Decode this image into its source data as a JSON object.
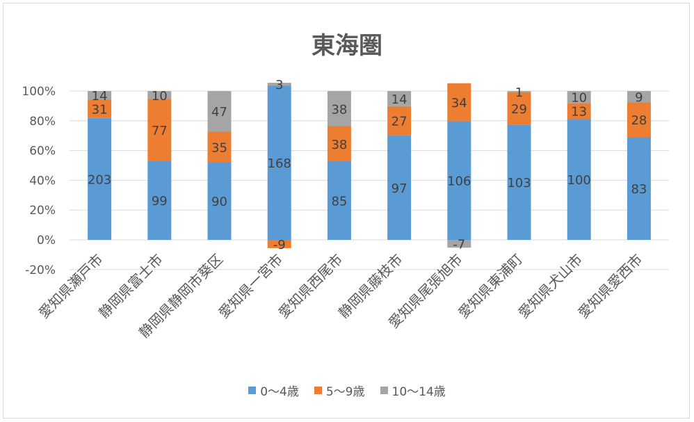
{
  "chart_data": {
    "type": "bar",
    "stacked": "percent",
    "title": "東海圏",
    "categories": [
      "愛知県瀬戸市",
      "静岡県富士市",
      "静岡県静岡市葵区",
      "愛知県一宮市",
      "愛知県西尾市",
      "静岡県藤枝市",
      "愛知県尾張旭市",
      "愛知県東浦町",
      "愛知県犬山市",
      "愛知県愛西市"
    ],
    "series": [
      {
        "name": "0～4歳",
        "color": "#5b9bd5",
        "values": [
          203,
          99,
          90,
          168,
          85,
          97,
          106,
          103,
          100,
          83
        ]
      },
      {
        "name": "5～9歳",
        "color": "#ed7d31",
        "values": [
          31,
          77,
          35,
          -9,
          38,
          27,
          34,
          29,
          13,
          28
        ]
      },
      {
        "name": "10～14歳",
        "color": "#a5a5a5",
        "values": [
          14,
          10,
          47,
          3,
          38,
          14,
          -7,
          1,
          10,
          9
        ]
      }
    ],
    "yticks": [
      "100%",
      "80%",
      "60%",
      "40%",
      "20%",
      "0%",
      "-20%"
    ],
    "ylim": [
      -0.2,
      1.0
    ],
    "legend_position": "bottom",
    "grid": true
  }
}
